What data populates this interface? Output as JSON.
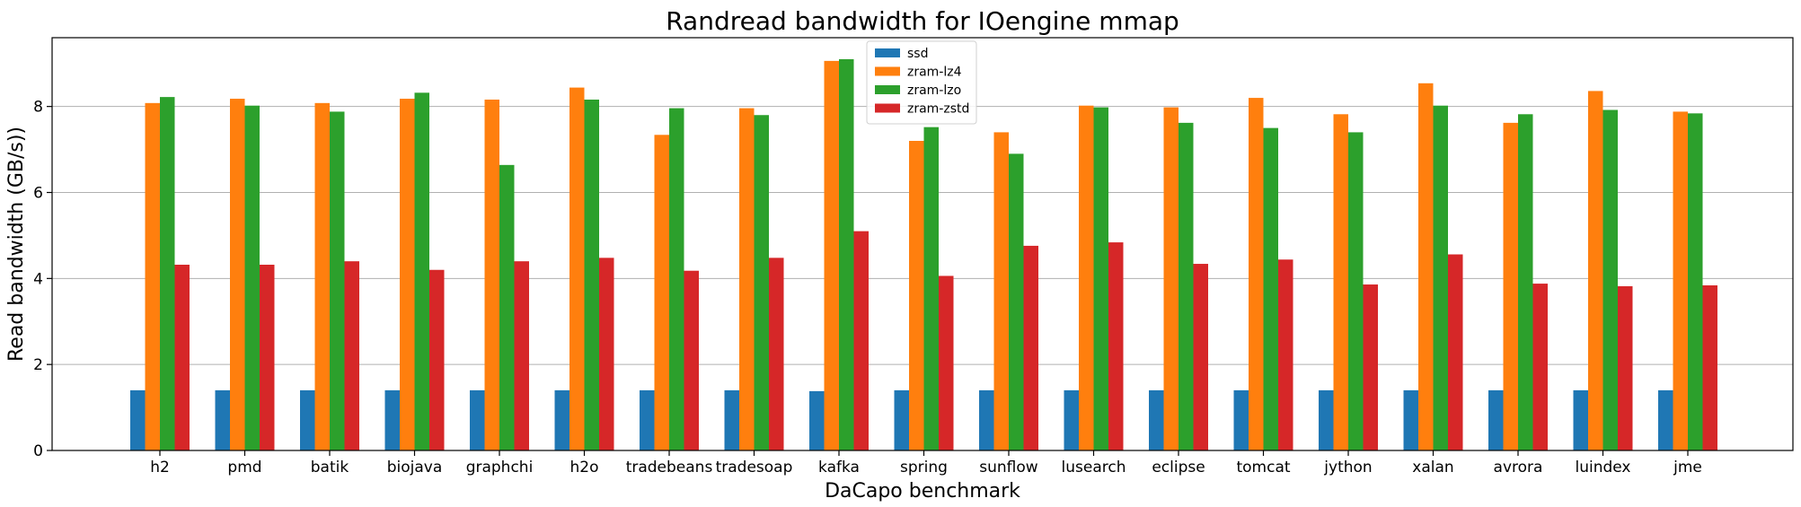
{
  "chart_data": {
    "type": "bar",
    "title": "Randread bandwidth for IOengine mmap",
    "xlabel": "DaCapo benchmark",
    "ylabel": "Read bandwidth (GB/s))",
    "ylim": [
      0,
      9.6
    ],
    "yticks": [
      0,
      2,
      4,
      6,
      8
    ],
    "grid": "horizontal",
    "legend_position": "top-center",
    "categories": [
      "h2",
      "pmd",
      "batik",
      "biojava",
      "graphchi",
      "h2o",
      "tradebeans",
      "tradesoap",
      "kafka",
      "spring",
      "sunflow",
      "lusearch",
      "eclipse",
      "tomcat",
      "jython",
      "xalan",
      "avrora",
      "luindex",
      "jme"
    ],
    "series": [
      {
        "name": "ssd",
        "color": "#1f77b4",
        "values": [
          1.4,
          1.4,
          1.4,
          1.4,
          1.4,
          1.4,
          1.4,
          1.4,
          1.38,
          1.4,
          1.4,
          1.4,
          1.4,
          1.4,
          1.4,
          1.4,
          1.4,
          1.4,
          1.4
        ]
      },
      {
        "name": "zram-lz4",
        "color": "#ff7f0e",
        "values": [
          8.08,
          8.18,
          8.08,
          8.18,
          8.16,
          8.44,
          7.34,
          7.96,
          9.06,
          7.2,
          7.4,
          8.02,
          7.98,
          8.2,
          7.82,
          8.54,
          7.62,
          8.36,
          7.88
        ]
      },
      {
        "name": "zram-lzo",
        "color": "#2ca02c",
        "values": [
          8.22,
          8.02,
          7.88,
          8.32,
          6.64,
          8.16,
          7.96,
          7.8,
          9.1,
          7.52,
          6.9,
          7.98,
          7.62,
          7.5,
          7.4,
          8.02,
          7.82,
          7.92,
          7.84
        ]
      },
      {
        "name": "zram-zstd",
        "color": "#d62728",
        "values": [
          4.32,
          4.32,
          4.4,
          4.2,
          4.4,
          4.48,
          4.18,
          4.48,
          5.1,
          4.06,
          4.76,
          4.84,
          4.34,
          4.44,
          3.86,
          4.56,
          3.88,
          3.82,
          3.84
        ]
      }
    ]
  }
}
